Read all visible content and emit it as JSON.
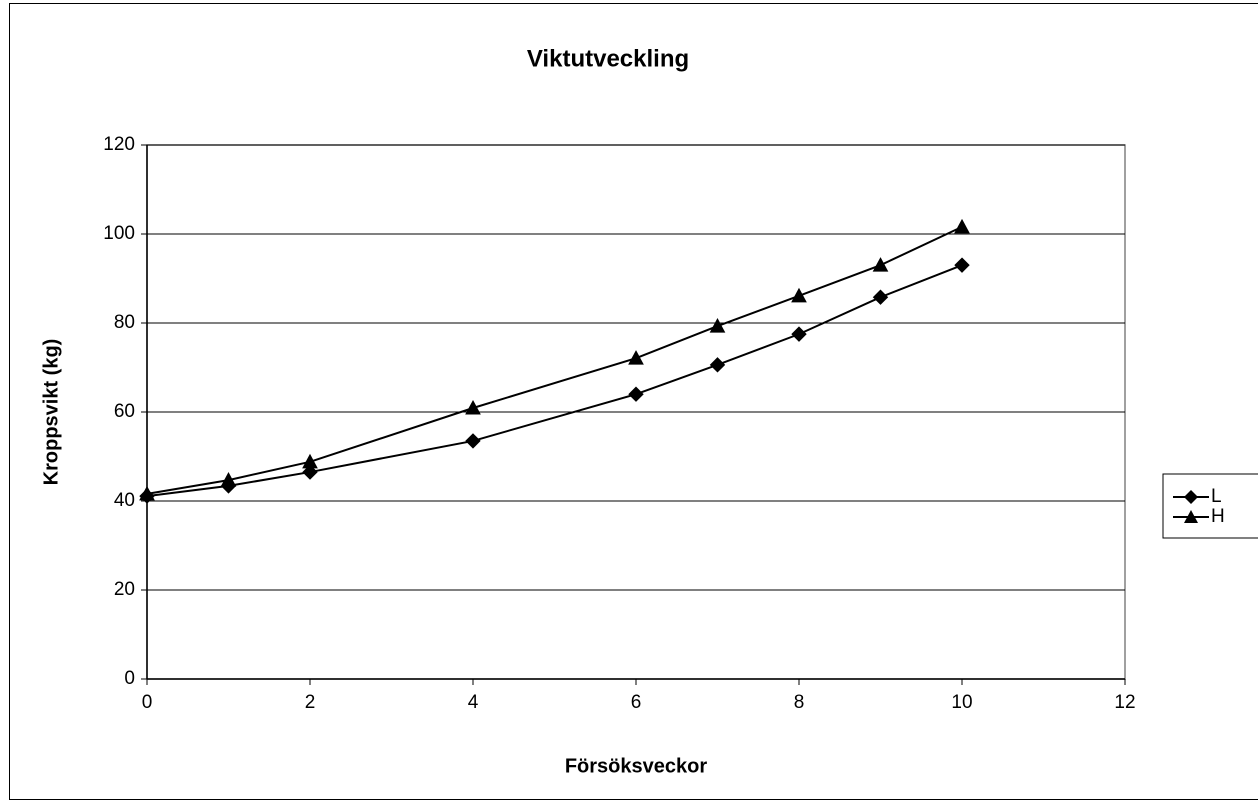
{
  "chart_data": {
    "type": "line",
    "title": "Viktutveckling",
    "x_label": "Försöksveckor",
    "y_label": "Kroppsvikt (kg)",
    "x": [
      0,
      1,
      2,
      4,
      6,
      7,
      8,
      9,
      10
    ],
    "series": [
      {
        "name": "L",
        "color": "#000000",
        "marker": "diamond",
        "values": [
          41.1,
          43.4,
          46.5,
          53.5,
          64.0,
          70.6,
          77.5,
          85.8,
          93.0
        ]
      },
      {
        "name": "H",
        "color": "#000000",
        "marker": "triangle",
        "values": [
          41.6,
          44.7,
          48.8,
          60.9,
          72.1,
          79.3,
          86.1,
          93.0,
          101.6
        ]
      }
    ],
    "xlim": [
      0,
      12
    ],
    "xticks": [
      0,
      2,
      4,
      6,
      8,
      10,
      12
    ],
    "ylim": [
      0,
      120
    ],
    "yticks": [
      0,
      20,
      40,
      60,
      80,
      100,
      120
    ],
    "grid": true,
    "legend": "right"
  }
}
